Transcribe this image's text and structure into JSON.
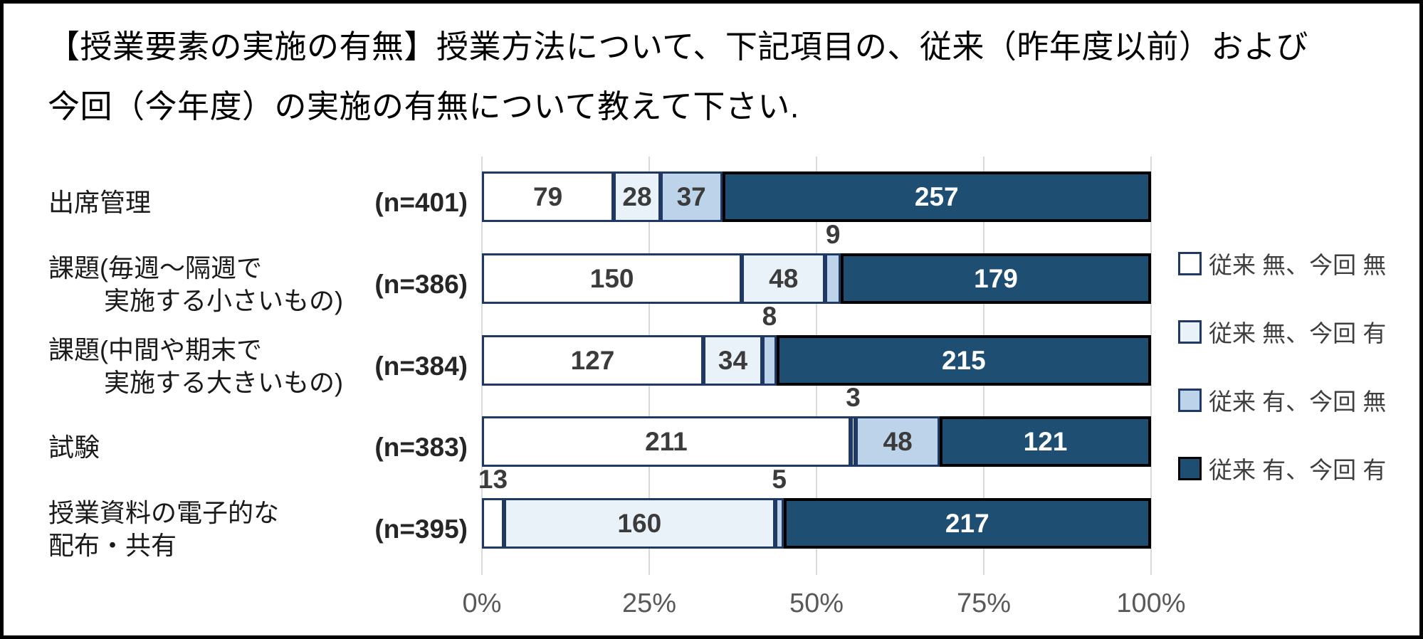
{
  "title": {
    "line1": "【授業要素の実施の有無】授業方法について、下記項目の、従来（昨年度以前）および",
    "line2": "今回（今年度）の実施の有無について教えて下さい."
  },
  "legend": {
    "position": "right",
    "items": [
      {
        "label": "従来 無、今回 無",
        "fill": "#FFFFFF",
        "border": "#1F3864"
      },
      {
        "label": "従来 無、今回 有",
        "fill": "#E9F1F9",
        "border": "#1F3864"
      },
      {
        "label": "従来 有、今回 無",
        "fill": "#BDD3E9",
        "border": "#1F3864"
      },
      {
        "label": "従来 有、今回 有",
        "fill": "#1E4E71",
        "border": "#000000"
      }
    ]
  },
  "chart_data": {
    "type": "bar",
    "stacked": true,
    "orientation": "horizontal",
    "percent_stacked": true,
    "xlim": [
      0,
      100
    ],
    "x_ticks": [
      "0%",
      "25%",
      "50%",
      "75%",
      "100%"
    ],
    "grid": "vertical",
    "grid_color": "#D9D9D9",
    "value_label_color": "#3B3B3B",
    "value_label_color_on_dark": "#FFFFFF",
    "series_names": [
      "従来 無、今回 無",
      "従来 無、今回 有",
      "従来 有、今回 無",
      "従来 有、今回 有"
    ],
    "series_fills": [
      "#FFFFFF",
      "#E9F1F9",
      "#BDD3E9",
      "#1E4E71"
    ],
    "series_borders": [
      "#1F3864",
      "#1F3864",
      "#1F3864",
      "#000000"
    ],
    "categories": [
      {
        "label_lines": [
          "出席管理"
        ],
        "line_indents": [
          0
        ],
        "n_label": "(n=401)",
        "n": 401,
        "values": [
          79,
          28,
          37,
          257
        ]
      },
      {
        "label_lines": [
          "課題(毎週～隔週で",
          "実施する小さいもの)"
        ],
        "line_indents": [
          0,
          78
        ],
        "n_label": "(n=386)",
        "n": 386,
        "values": [
          150,
          48,
          9,
          179
        ]
      },
      {
        "label_lines": [
          "課題(中間や期末で",
          "実施する大きいもの)"
        ],
        "line_indents": [
          0,
          78
        ],
        "n_label": "(n=384)",
        "n": 384,
        "values": [
          127,
          34,
          8,
          215
        ]
      },
      {
        "label_lines": [
          "試験"
        ],
        "line_indents": [
          0
        ],
        "n_label": "(n=383)",
        "n": 383,
        "values": [
          211,
          3,
          48,
          121
        ]
      },
      {
        "label_lines": [
          "授業資料の電子的な",
          "配布・共有"
        ],
        "line_indents": [
          0,
          0
        ],
        "n_label": "(n=395)",
        "n": 395,
        "values": [
          13,
          160,
          5,
          217
        ]
      }
    ]
  }
}
